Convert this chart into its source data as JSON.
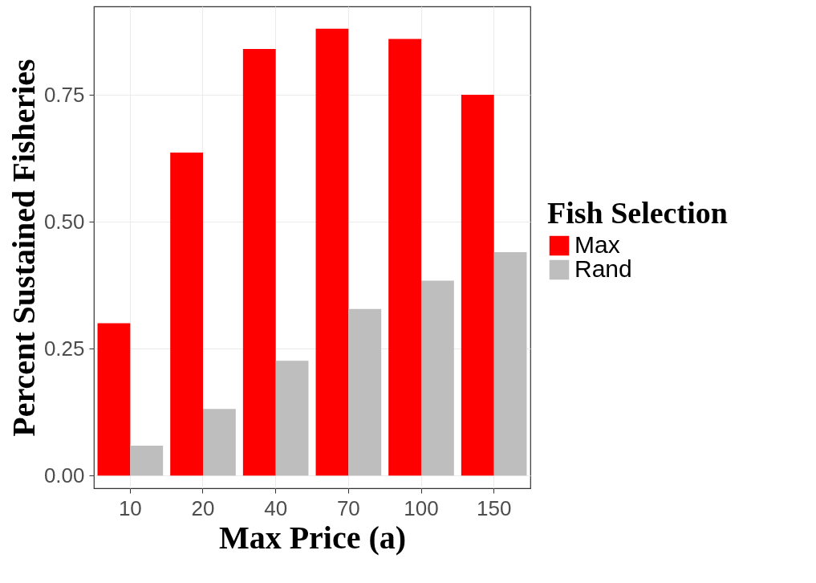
{
  "chart_data": {
    "type": "bar",
    "xlabel": "Max Price (a)",
    "ylabel": "Percent Sustained Fisheries",
    "legend_title": "Fish Selection",
    "categories": [
      "10",
      "20",
      "40",
      "70",
      "100",
      "150"
    ],
    "series": [
      {
        "name": "Max",
        "color": "#ff0000",
        "values": [
          0.3,
          0.636,
          0.84,
          0.88,
          0.86,
          0.75
        ]
      },
      {
        "name": "Rand",
        "color": "#bebebe",
        "values": [
          0.059,
          0.131,
          0.226,
          0.328,
          0.384,
          0.44
        ]
      }
    ],
    "ylim": [
      -0.025,
      0.924
    ],
    "yticks": [
      {
        "value": 0,
        "label": "0.00"
      },
      {
        "value": 0.25,
        "label": "0.25"
      },
      {
        "value": 0.5,
        "label": "0.50"
      },
      {
        "value": 0.75,
        "label": "0.75"
      }
    ],
    "grid": true,
    "legend": "right"
  }
}
